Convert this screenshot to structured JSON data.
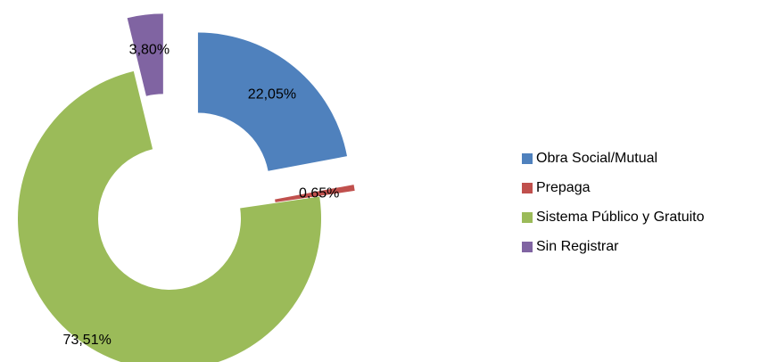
{
  "chart_data": {
    "type": "pie",
    "categories": [
      "Obra Social/Mutual",
      "Prepaga",
      "Sistema Público y Gratuito",
      "Sin Registrar"
    ],
    "values": [
      22.05,
      0.65,
      73.51,
      3.8
    ],
    "value_labels": [
      "22,05%",
      "0,65%",
      "73,51%",
      "3,80%"
    ],
    "colors": [
      "#4f81bd",
      "#c0504d",
      "#9bbb59",
      "#8064a2"
    ],
    "donut": true,
    "legend": "right"
  }
}
